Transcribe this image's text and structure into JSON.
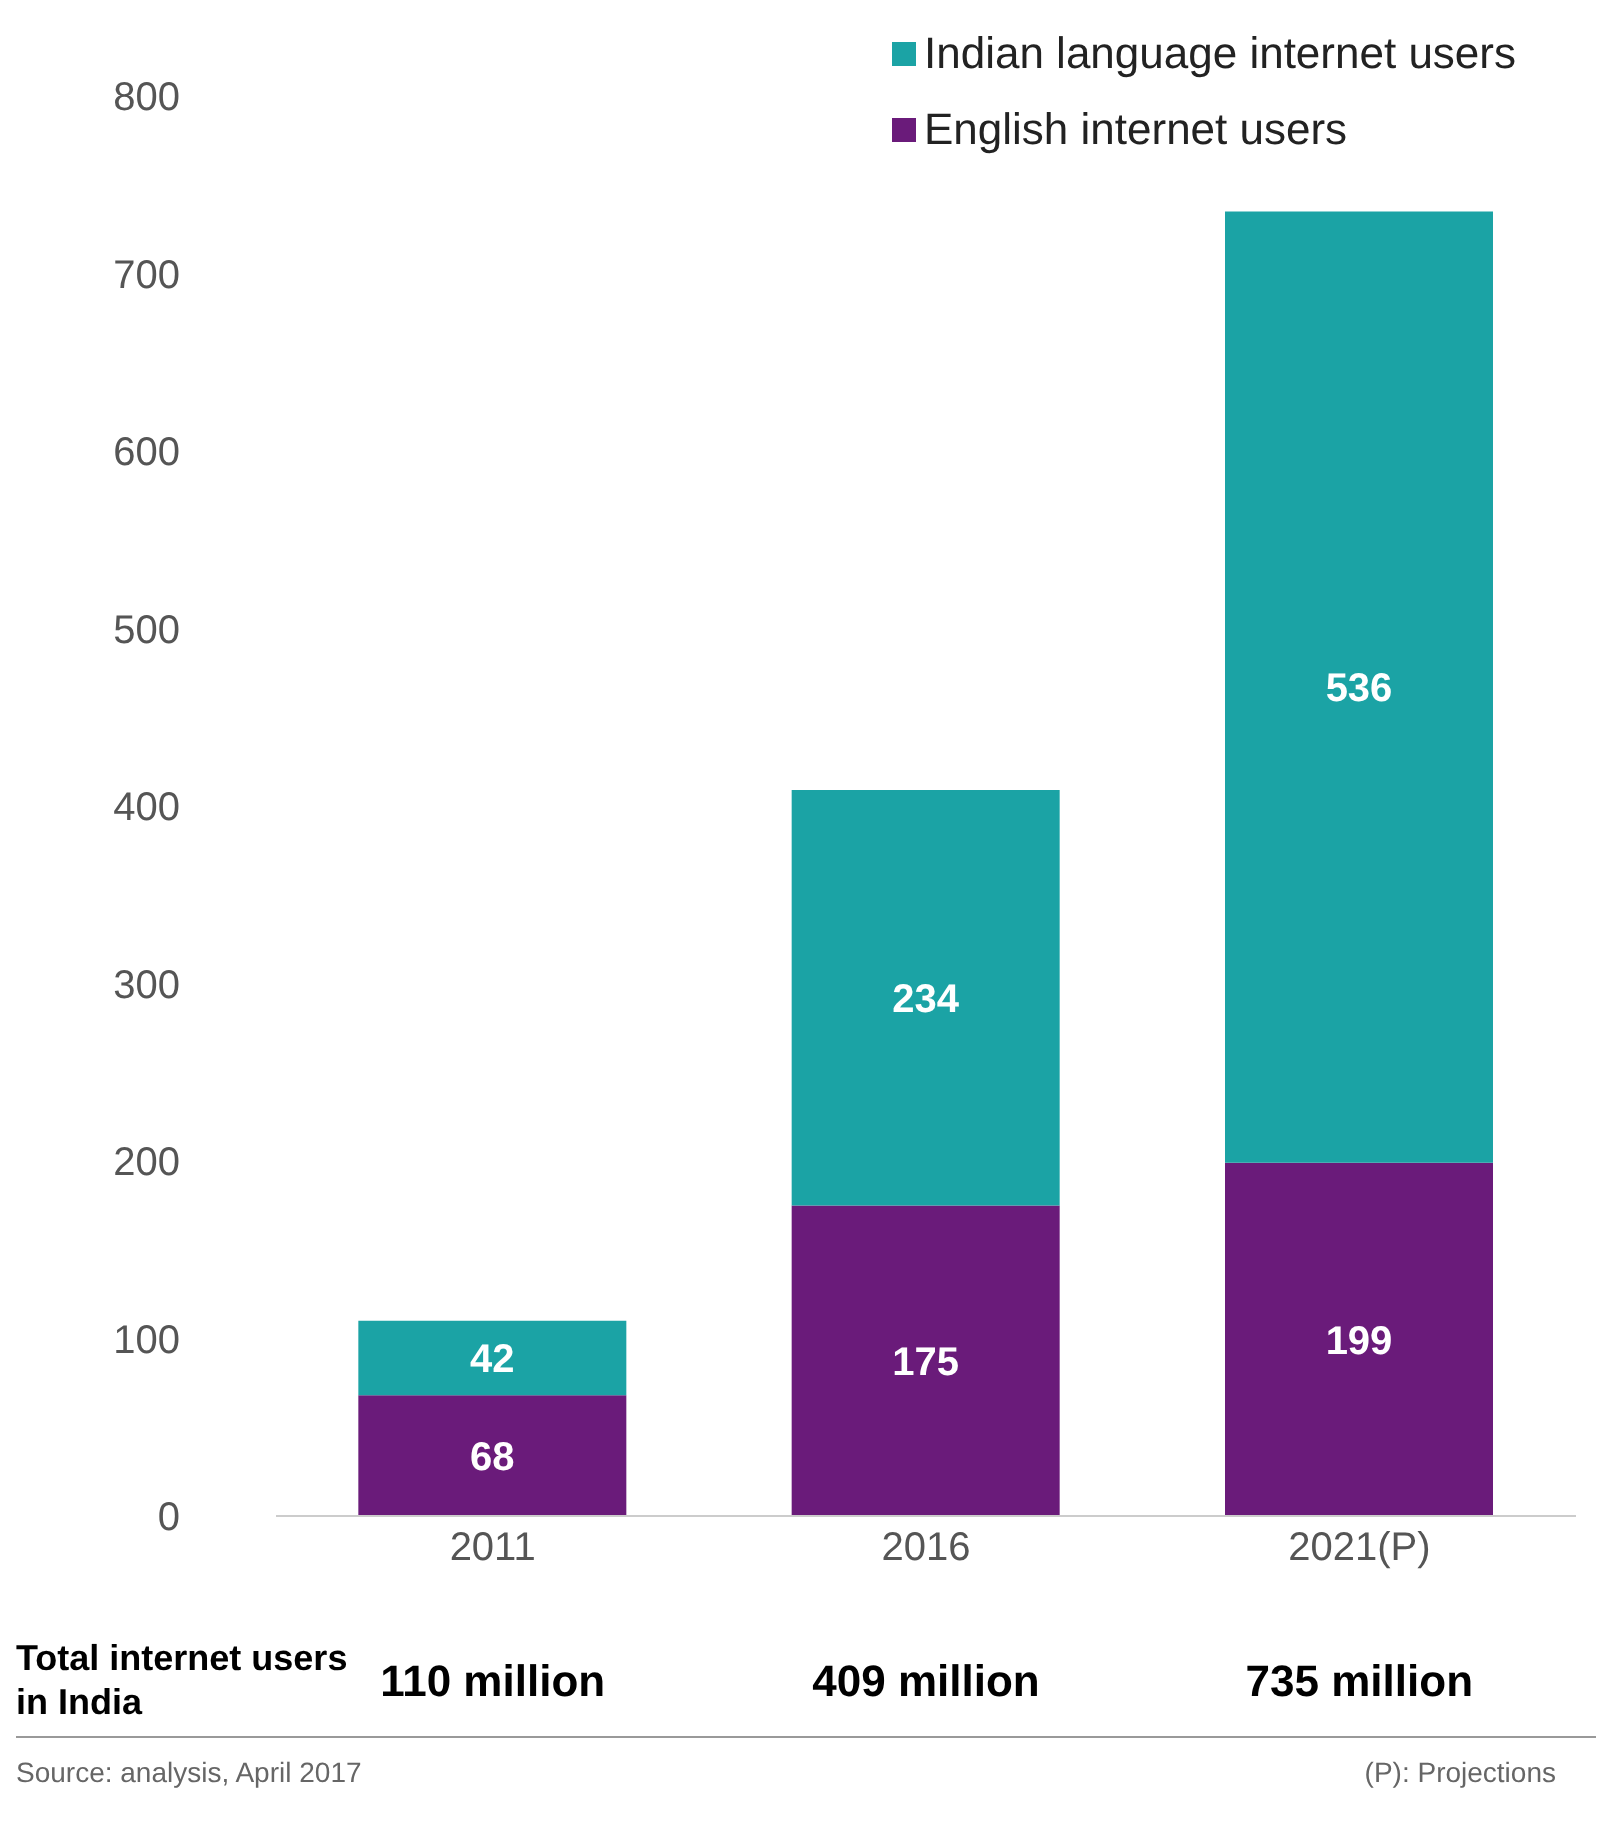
{
  "chart_data": {
    "type": "bar",
    "stacked": true,
    "categories": [
      "2011",
      "2016",
      "2021(P)"
    ],
    "series": [
      {
        "name": "English internet users",
        "color": "#6a1b7a",
        "values": [
          68,
          175,
          199
        ]
      },
      {
        "name": "Indian language internet users",
        "color": "#1ba3a5",
        "values": [
          42,
          234,
          536
        ]
      }
    ],
    "ylim": [
      0,
      800
    ],
    "yticks": [
      0,
      100,
      200,
      300,
      400,
      500,
      600,
      700,
      800
    ],
    "grid": false,
    "legend": "top right",
    "data_labels": true,
    "totals": [
      "110 million",
      "409 million",
      "735 million"
    ],
    "annotations": [
      "Total internet users in India",
      "Source: analysis, April 2017",
      "(P): Projections"
    ]
  }
}
